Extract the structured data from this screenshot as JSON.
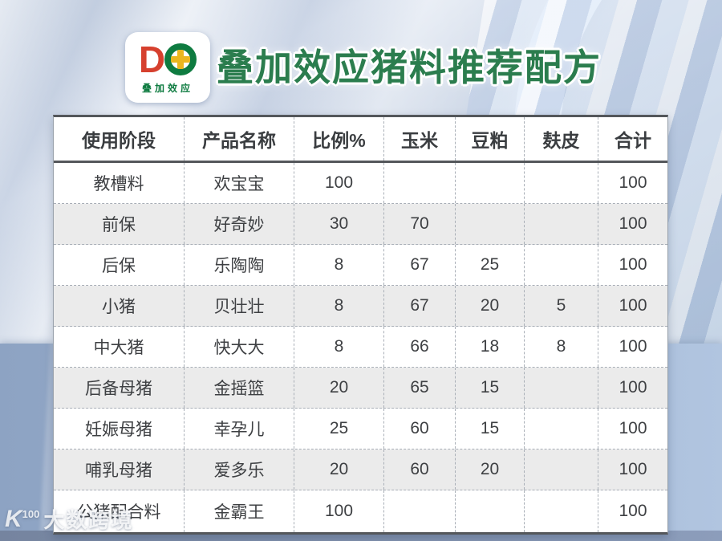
{
  "header": {
    "title": "叠加效应猪料推荐配方"
  },
  "logo": {
    "mark_d": "D",
    "mark_icon": "plus-in-circle",
    "text": "叠加效应",
    "colors": {
      "d_red": "#d6402e",
      "ring_green": "#0e7b40",
      "cross_gold": "#eab61e"
    }
  },
  "chart_data": {
    "type": "table",
    "title": "叠加效应猪料推荐配方",
    "columns": [
      "使用阶段",
      "产品名称",
      "比例%",
      "玉米",
      "豆粕",
      "麸皮",
      "合计"
    ],
    "rows": [
      [
        "教槽料",
        "欢宝宝",
        "100",
        "",
        "",
        "",
        "100"
      ],
      [
        "前保",
        "好奇妙",
        "30",
        "70",
        "",
        "",
        "100"
      ],
      [
        "后保",
        "乐陶陶",
        "8",
        "67",
        "25",
        "",
        "100"
      ],
      [
        "小猪",
        "贝壮壮",
        "8",
        "67",
        "20",
        "5",
        "100"
      ],
      [
        "中大猪",
        "快大大",
        "8",
        "66",
        "18",
        "8",
        "100"
      ],
      [
        "后备母猪",
        "金摇篮",
        "20",
        "65",
        "15",
        "",
        "100"
      ],
      [
        "妊娠母猪",
        "幸孕儿",
        "25",
        "60",
        "15",
        "",
        "100"
      ],
      [
        "哺乳母猪",
        "爱多乐",
        "20",
        "60",
        "20",
        "",
        "100"
      ],
      [
        "公猪配合料",
        "金霸王",
        "100",
        "",
        "",
        "",
        "100"
      ]
    ],
    "layout": {
      "alt_row_color": "#ebebeb",
      "border_dark": "#54575b",
      "border_dashed": "#a9afb7"
    }
  },
  "watermark": {
    "icon_text": "K",
    "icon_sup": "100",
    "text": "大数跨境"
  },
  "colors": {
    "title_green": "#2b7d4e",
    "bg_top": "#dfe7f2",
    "bg_bottom_left": "#8da3c3",
    "bg_bottom_right": "#b1c5e0",
    "text": "#3e4043"
  }
}
